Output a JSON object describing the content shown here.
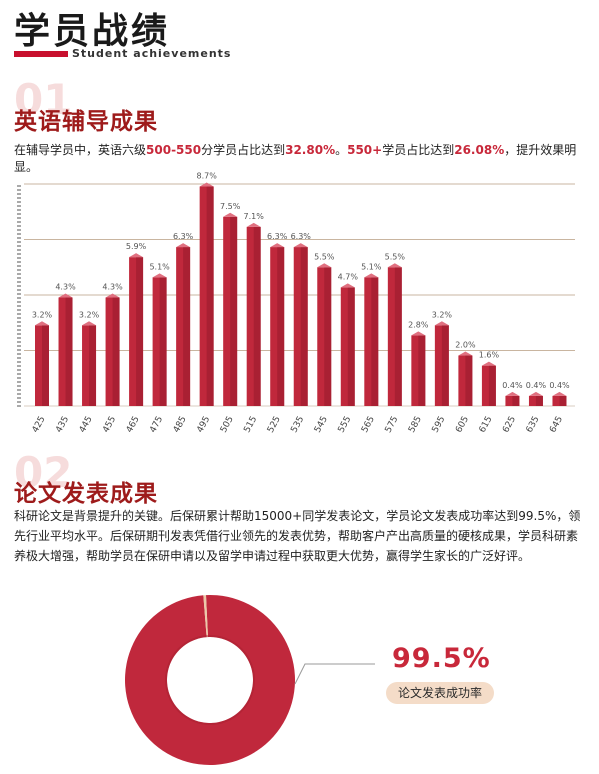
{
  "header": {
    "title": "学员战绩",
    "subtitle": "Student achievements"
  },
  "section1": {
    "number": "01",
    "title": "英语辅导成果",
    "desc": [
      {
        "text": "在辅导学员中，英语六级",
        "hl": false
      },
      {
        "text": "500-550",
        "hl": true
      },
      {
        "text": "分学员占比达到",
        "hl": false
      },
      {
        "text": "32.80%",
        "hl": true
      },
      {
        "text": "。",
        "hl": false
      },
      {
        "text": "550+",
        "hl": true
      },
      {
        "text": "学员占比达到",
        "hl": false
      },
      {
        "text": "26.08%",
        "hl": true
      },
      {
        "text": "，提升效果明显。",
        "hl": false
      }
    ]
  },
  "chart_data": [
    {
      "type": "bar",
      "categories": [
        "425",
        "435",
        "445",
        "455",
        "465",
        "475",
        "485",
        "495",
        "505",
        "515",
        "525",
        "535",
        "545",
        "555",
        "565",
        "575",
        "585",
        "595",
        "605",
        "615",
        "625",
        "635",
        "645"
      ],
      "values": [
        3.2,
        4.3,
        3.2,
        4.3,
        5.9,
        5.1,
        6.3,
        8.7,
        7.5,
        7.1,
        6.3,
        6.3,
        5.5,
        4.7,
        5.1,
        5.5,
        2.8,
        3.2,
        2.0,
        1.6,
        0.4,
        0.4,
        0.4
      ],
      "value_labels": [
        "3.2%",
        "4.3%",
        "3.2%",
        "4.3%",
        "5.9%",
        "5.1%",
        "6.3%",
        "8.7%",
        "7.5%",
        "7.1%",
        "6.3%",
        "6.3%",
        "5.5%",
        "4.7%",
        "5.1%",
        "5.5%",
        "2.8%",
        "3.2%",
        "2.0%",
        "1.6%",
        "0.4%",
        "0.4%",
        "0.4%"
      ],
      "title": "",
      "xlabel": "",
      "ylabel": "",
      "ylim": [
        0,
        8.8
      ],
      "grid": true,
      "bar_color": "#c0283c"
    },
    {
      "type": "pie",
      "labels": [
        "论文发表成功率",
        ""
      ],
      "values": [
        99.5,
        0.5
      ],
      "colors": [
        "#c0283c",
        "#ecc8a8"
      ]
    }
  ],
  "section2": {
    "number": "02",
    "title": "论文发表成果",
    "body": "科研论文是背景提升的关键。后保研累计帮助15000+同学发表论文，学员论文发表成功率达到99.5%，领先行业平均水平。后保研期刊发表凭借行业领先的发表优势，帮助客户产出高质量的硬核成果，学员科研素养极大增强，帮助学员在保研申请以及留学申请过程中获取更大优势，赢得学生家长的广泛好评。"
  },
  "rate": {
    "value": "99.5%",
    "label": "论文发表成功率"
  },
  "colors": {
    "accent": "#c8102e",
    "section_title": "#9e1b1b",
    "highlight": "#c8283a",
    "grid": "#c9b5a0",
    "label_pill": "#f4dcc8"
  }
}
